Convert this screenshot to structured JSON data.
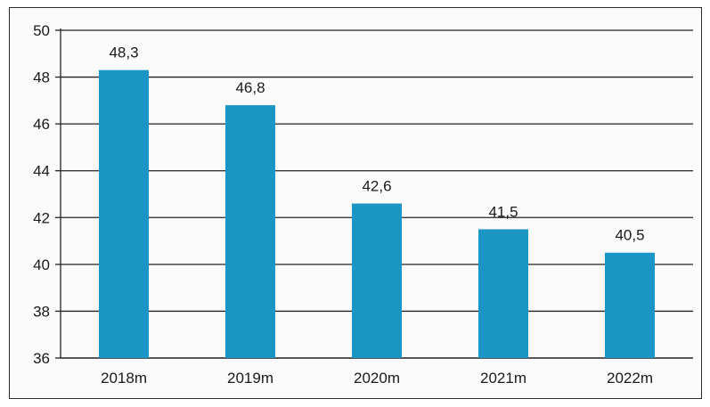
{
  "chart_data": {
    "type": "bar",
    "title": "",
    "xlabel": "",
    "ylabel": "",
    "categories": [
      "2018m",
      "2019m",
      "2020m",
      "2021m",
      "2022m"
    ],
    "values": [
      48.3,
      46.8,
      42.6,
      41.5,
      40.5
    ],
    "value_labels": [
      "48,3",
      "46,8",
      "42,6",
      "41,5",
      "40,5"
    ],
    "ylim": [
      36,
      50
    ],
    "yticks": [
      36,
      38,
      40,
      42,
      44,
      46,
      48,
      50
    ],
    "ytick_labels": [
      "36",
      "38",
      "40",
      "42",
      "44",
      "46",
      "48",
      "50"
    ],
    "grid": true,
    "legend": "none",
    "colors": {
      "bar": "#1a95c4",
      "grid": "#222222",
      "axis": "#222222",
      "text": "#1a1a1a"
    }
  }
}
